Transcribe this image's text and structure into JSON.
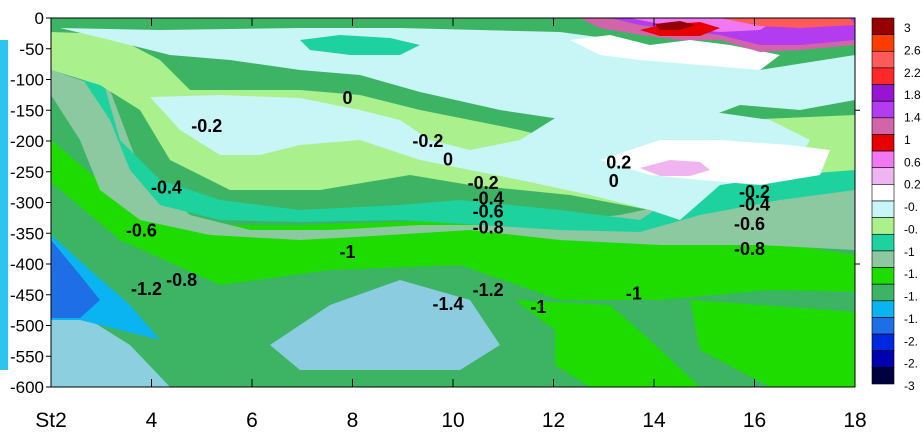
{
  "chart_data": {
    "type": "contour",
    "title": "",
    "xlabel": "",
    "ylabel": "",
    "xlim": [
      2,
      18
    ],
    "ylim": [
      -600,
      0
    ],
    "x_ticks": [
      {
        "value": 2,
        "label": "St2"
      },
      {
        "value": 4,
        "label": "4"
      },
      {
        "value": 6,
        "label": "6"
      },
      {
        "value": 8,
        "label": "8"
      },
      {
        "value": 10,
        "label": "10"
      },
      {
        "value": 12,
        "label": "12"
      },
      {
        "value": 14,
        "label": "14"
      },
      {
        "value": 16,
        "label": "16"
      },
      {
        "value": 18,
        "label": "18"
      }
    ],
    "y_ticks": [
      0,
      -50,
      -100,
      -150,
      -200,
      -250,
      -300,
      -350,
      -400,
      -450,
      -500,
      -550,
      -600
    ],
    "levels": [
      {
        "value": -3.0,
        "label": "-3",
        "color": "#000040"
      },
      {
        "value": -2.6,
        "label": "-2.",
        "color": "#0000b0"
      },
      {
        "value": -2.2,
        "label": "-2.",
        "color": "#0028e0"
      },
      {
        "value": -1.8,
        "label": "-1.",
        "color": "#1e6ee6"
      },
      {
        "value": -1.4,
        "label": "-1.",
        "color": "#0ab4f0"
      },
      {
        "value": -1.2,
        "label": "-1.",
        "color": "#3cb464"
      },
      {
        "value": -1.0,
        "label": "-1",
        "color": "#1edc00"
      },
      {
        "value": -0.6,
        "label": "-0.",
        "color": "#8cc8a0"
      },
      {
        "value": -0.4,
        "label": "-0.",
        "color": "#1ed2a0"
      },
      {
        "value": -0.2,
        "label": "-0.",
        "color": "#aaf08c"
      },
      {
        "value": 0.0,
        "label": "0.2",
        "color": "#c8f5f5"
      },
      {
        "value": 0.2,
        "label": "0.2",
        "color": "#ffffff"
      },
      {
        "value": 0.4,
        "label": "0.6",
        "color": "#f0b4f0"
      },
      {
        "value": 0.8,
        "label": "1",
        "color": "#f078f0"
      },
      {
        "value": 1.2,
        "label": "1.4",
        "color": "#e60000"
      },
      {
        "value": 1.6,
        "label": "1.8",
        "color": "#d264aa"
      },
      {
        "value": 2.0,
        "label": "2.2",
        "color": "#b43cf0"
      },
      {
        "value": 2.4,
        "label": "2.6",
        "color": "#9614d2"
      },
      {
        "value": 2.8,
        "label": "3",
        "color": "#ff2828"
      },
      {
        "value": 3.2,
        "label": "",
        "color": "#ff5a5a"
      },
      {
        "value": 3.6,
        "label": "",
        "color": "#ff3c00"
      },
      {
        "value": 4.0,
        "label": "",
        "color": "#960000"
      }
    ],
    "contour_labels": [
      {
        "text": "0",
        "x": 7.9,
        "y": -140
      },
      {
        "text": "-0.2",
        "x": 5.1,
        "y": -185
      },
      {
        "text": "-0.2",
        "x": 9.5,
        "y": -210
      },
      {
        "text": "0",
        "x": 9.9,
        "y": -240
      },
      {
        "text": "0.2",
        "x": 13.3,
        "y": -245
      },
      {
        "text": "0",
        "x": 13.2,
        "y": -275
      },
      {
        "text": "-0.4",
        "x": 4.3,
        "y": -285
      },
      {
        "text": "-0.2",
        "x": 10.6,
        "y": -278
      },
      {
        "text": "-0.4",
        "x": 10.7,
        "y": -303
      },
      {
        "text": "-0.6",
        "x": 10.7,
        "y": -324
      },
      {
        "text": "-0.8",
        "x": 10.7,
        "y": -350
      },
      {
        "text": "-0.2",
        "x": 16.0,
        "y": -293
      },
      {
        "text": "-0.4",
        "x": 16.0,
        "y": -313
      },
      {
        "text": "-0.6",
        "x": 15.9,
        "y": -345
      },
      {
        "text": "-0.8",
        "x": 15.9,
        "y": -385
      },
      {
        "text": "-0.6",
        "x": 3.8,
        "y": -355
      },
      {
        "text": "-1",
        "x": 7.9,
        "y": -390
      },
      {
        "text": "-0.8",
        "x": 4.6,
        "y": -436
      },
      {
        "text": "-1.2",
        "x": 3.9,
        "y": -450
      },
      {
        "text": "-1.4",
        "x": 9.9,
        "y": -475
      },
      {
        "text": "-1.2",
        "x": 10.7,
        "y": -452
      },
      {
        "text": "-1",
        "x": 11.7,
        "y": -480
      },
      {
        "text": "-1",
        "x": 13.6,
        "y": -458
      }
    ]
  }
}
